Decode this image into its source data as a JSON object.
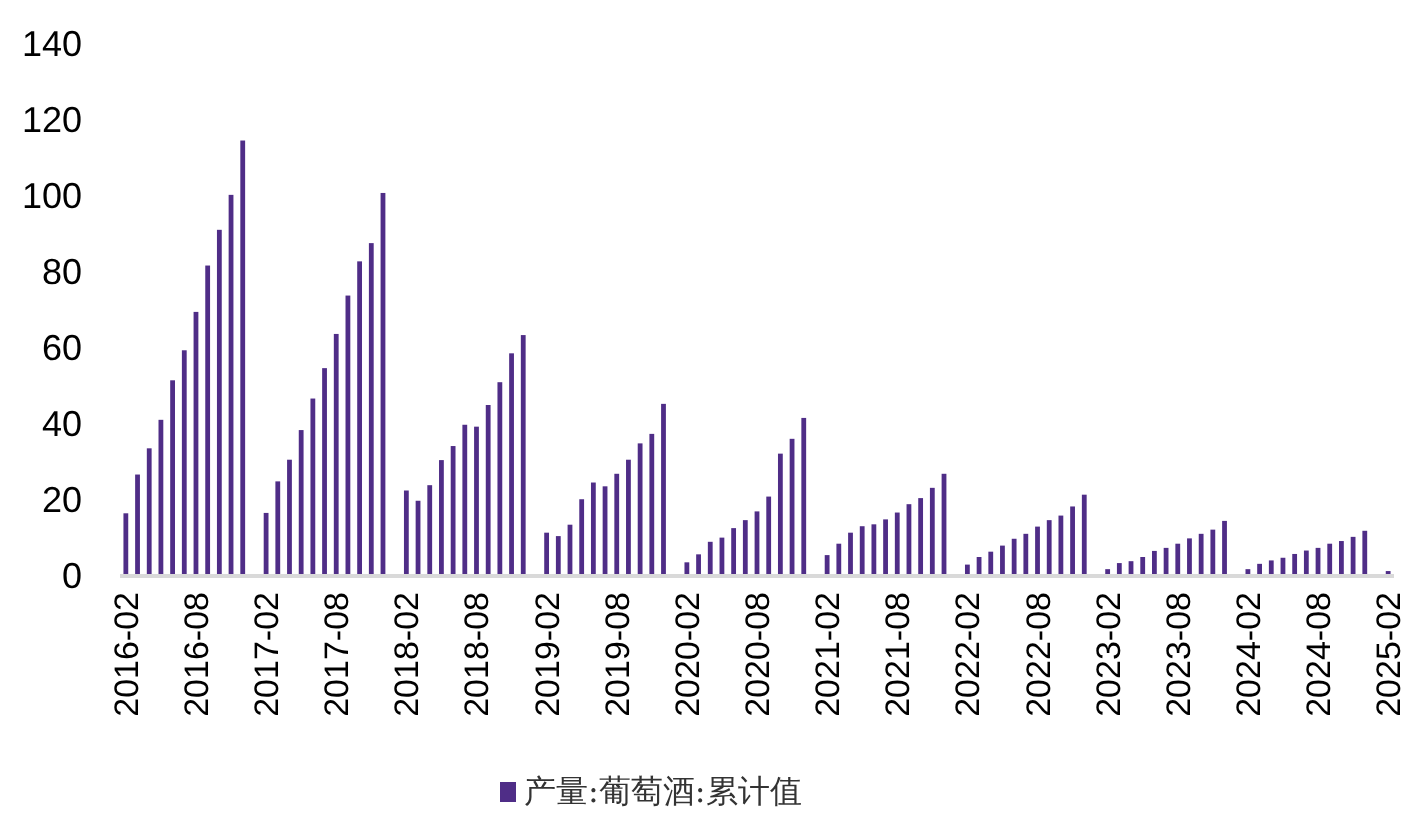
{
  "chart_data": {
    "type": "bar",
    "categories": [
      "2016-02",
      null,
      null,
      null,
      null,
      null,
      "2016-08",
      null,
      null,
      null,
      null,
      null,
      "2017-02",
      null,
      null,
      null,
      null,
      null,
      "2017-08",
      null,
      null,
      null,
      null,
      null,
      "2018-02",
      null,
      null,
      null,
      null,
      null,
      "2018-08",
      null,
      null,
      null,
      null,
      null,
      "2019-02",
      null,
      null,
      null,
      null,
      null,
      "2019-08",
      null,
      null,
      null,
      null,
      null,
      "2020-02",
      null,
      null,
      null,
      null,
      null,
      "2020-08",
      null,
      null,
      null,
      null,
      null,
      "2021-02",
      null,
      null,
      null,
      null,
      null,
      "2021-08",
      null,
      null,
      null,
      null,
      null,
      "2022-02",
      null,
      null,
      null,
      null,
      null,
      "2022-08",
      null,
      null,
      null,
      null,
      null,
      "2023-02",
      null,
      null,
      null,
      null,
      null,
      "2023-08",
      null,
      null,
      null,
      null,
      null,
      "2024-02",
      null,
      null,
      null,
      null,
      null,
      "2024-08",
      null,
      null,
      null,
      null,
      null,
      "2025-02"
    ],
    "series": [
      {
        "name": "产量:葡萄酒:累计值",
        "color": "#4f2d87",
        "values": [
          16.5,
          26.7,
          33.6,
          41.1,
          51.5,
          59.4,
          69.5,
          81.7,
          91.1,
          100.3,
          114.6,
          null,
          16.6,
          24.9,
          30.6,
          38.4,
          46.7,
          54.7,
          63.7,
          73.8,
          82.8,
          87.6,
          100.8,
          null,
          22.5,
          19.8,
          23.9,
          30.5,
          34.2,
          39.8,
          39.3,
          45.0,
          51.0,
          58.6,
          63.4,
          null,
          11.4,
          10.5,
          13.5,
          20.2,
          24.6,
          23.6,
          26.9,
          30.6,
          34.9,
          37.4,
          45.3,
          null,
          3.6,
          5.7,
          9.0,
          10.1,
          12.6,
          14.7,
          17.0,
          20.9,
          32.2,
          36.1,
          41.6,
          null,
          5.5,
          8.5,
          11.4,
          13.1,
          13.6,
          14.9,
          16.7,
          18.9,
          20.5,
          23.2,
          26.9,
          null,
          3.0,
          5.0,
          6.4,
          8.0,
          9.8,
          11.1,
          13.0,
          14.7,
          15.9,
          18.3,
          21.4,
          null,
          1.8,
          3.4,
          3.9,
          5.0,
          6.6,
          7.4,
          8.5,
          9.9,
          11.1,
          12.2,
          14.5,
          null,
          1.8,
          3.2,
          4.1,
          4.8,
          5.8,
          6.7,
          7.4,
          8.5,
          9.2,
          10.3,
          11.9,
          null,
          1.3
        ]
      }
    ],
    "ylim": [
      0,
      140
    ],
    "yticks": [
      0,
      20,
      40,
      60,
      80,
      100,
      120,
      140
    ],
    "legend": "bottom"
  }
}
